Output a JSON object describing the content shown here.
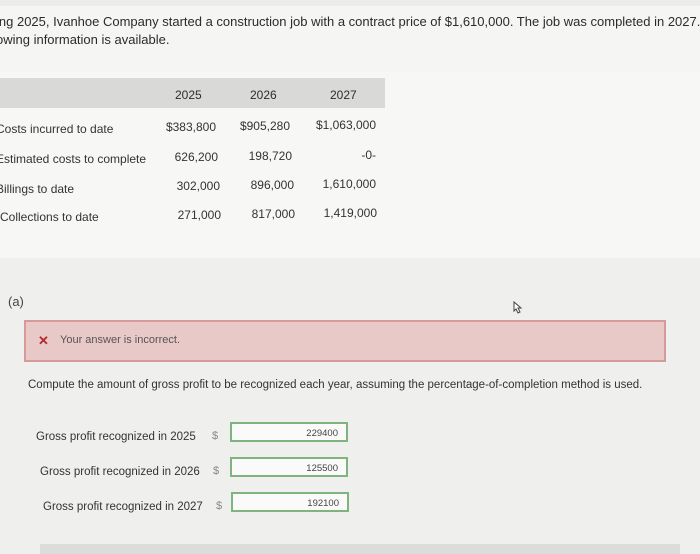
{
  "intro": {
    "line1": "ing 2025, Ivanhoe Company started a construction job with a contract price of $1,610,000. The job was completed in 2027. The",
    "line2": "owing information is available."
  },
  "table": {
    "years": [
      "2025",
      "2026",
      "2027"
    ],
    "rows": [
      {
        "label": "Costs incurred to date",
        "values": [
          "$383,800",
          "$905,280",
          "$1,063,000"
        ]
      },
      {
        "label": "Estimated costs to complete",
        "values": [
          "626,200",
          "198,720",
          "-0-"
        ]
      },
      {
        "label": "Billings to date",
        "values": [
          "302,000",
          "896,000",
          "1,610,000"
        ]
      },
      {
        "label": "Collections to date",
        "values": [
          "271,000",
          "817,000",
          "1,419,000"
        ]
      }
    ]
  },
  "part": {
    "label": "(a)",
    "error_text": "Your answer is incorrect.",
    "instruction": "Compute the amount of gross profit to be recognized each year, assuming the percentage-of-completion method is used."
  },
  "answers": [
    {
      "label": "Gross profit recognized in 2025",
      "currency": "$",
      "value": "229400"
    },
    {
      "label": "Gross profit recognized in 2026",
      "currency": "$",
      "value": "125500"
    },
    {
      "label": "Gross profit recognized in 2027",
      "currency": "$",
      "value": "192100"
    }
  ]
}
